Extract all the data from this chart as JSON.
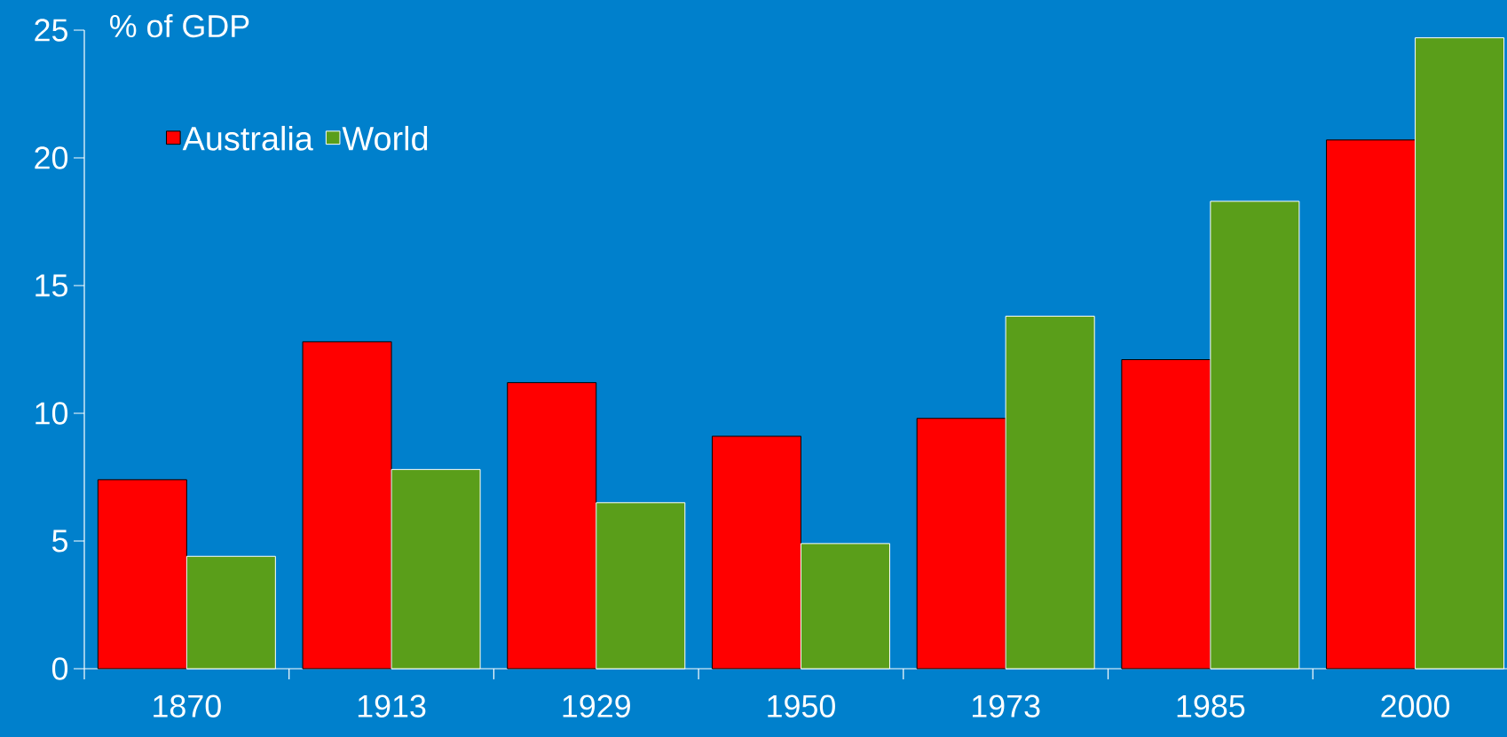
{
  "chart_data": {
    "type": "bar",
    "ylabel": "% of GDP",
    "categories": [
      "1870",
      "1913",
      "1929",
      "1950",
      "1973",
      "1985",
      "2000"
    ],
    "series": [
      {
        "name": "Australia",
        "color": "#ff0000",
        "values": [
          7.4,
          12.8,
          11.2,
          9.1,
          9.8,
          12.1,
          20.7
        ]
      },
      {
        "name": "World",
        "color": "#5a9e1a",
        "values": [
          4.4,
          7.8,
          6.5,
          4.9,
          13.8,
          18.3,
          24.7
        ]
      }
    ],
    "ylim": [
      0,
      25
    ],
    "yticks": [
      0,
      5,
      10,
      15,
      20,
      25
    ],
    "legend": "top left",
    "grid": false
  }
}
